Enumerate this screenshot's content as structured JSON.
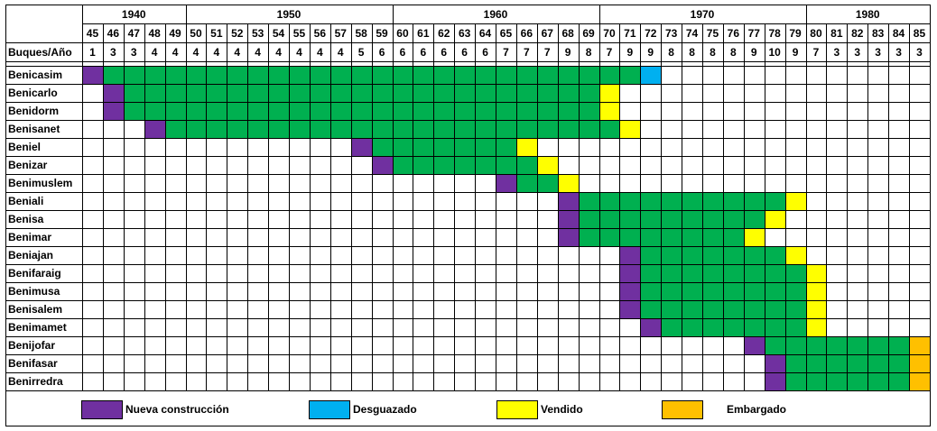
{
  "chart_data": {
    "type": "table",
    "header_label": "Buques/Año",
    "decades": [
      "1940",
      "1950",
      "1960",
      "1970",
      "1980"
    ],
    "decade_spans": [
      {
        "label": "1940",
        "start": 0,
        "count": 5
      },
      {
        "label": "1950",
        "start": 5,
        "count": 10
      },
      {
        "label": "1960",
        "start": 15,
        "count": 10
      },
      {
        "label": "1970",
        "start": 25,
        "count": 10
      },
      {
        "label": "1980",
        "start": 35,
        "count": 6
      }
    ],
    "years": [
      "45",
      "46",
      "47",
      "48",
      "49",
      "50",
      "51",
      "52",
      "53",
      "54",
      "55",
      "56",
      "57",
      "58",
      "59",
      "60",
      "61",
      "62",
      "63",
      "64",
      "65",
      "66",
      "67",
      "68",
      "69",
      "70",
      "71",
      "72",
      "73",
      "74",
      "75",
      "76",
      "77",
      "78",
      "79",
      "80",
      "81",
      "82",
      "83",
      "84",
      "85"
    ],
    "fleet_counts": [
      "1",
      "3",
      "3",
      "4",
      "4",
      "4",
      "4",
      "4",
      "4",
      "4",
      "4",
      "4",
      "4",
      "5",
      "6",
      "6",
      "6",
      "6",
      "6",
      "6",
      "7",
      "7",
      "7",
      "9",
      "8",
      "7",
      "9",
      "9",
      "8",
      "8",
      "8",
      "8",
      "9",
      "10",
      "9",
      "7",
      "3",
      "3",
      "3",
      "3",
      "3"
    ],
    "ships": [
      {
        "name": "Benicasim",
        "nueva": "45",
        "activo": [
          "46",
          "71"
        ],
        "fin": "72",
        "estado": "desguazado"
      },
      {
        "name": "Benicarlo",
        "nueva": "46",
        "activo": [
          "47",
          "69"
        ],
        "fin": "70",
        "estado": "vendido"
      },
      {
        "name": "Benidorm",
        "nueva": "46",
        "activo": [
          "47",
          "69"
        ],
        "fin": "70",
        "estado": "vendido"
      },
      {
        "name": "Benisanet",
        "nueva": "48",
        "activo": [
          "49",
          "70"
        ],
        "fin": "71",
        "estado": "vendido"
      },
      {
        "name": "Beniel",
        "nueva": "58",
        "activo": [
          "59",
          "65"
        ],
        "fin": "66",
        "estado": "vendido"
      },
      {
        "name": "Benizar",
        "nueva": "59",
        "activo": [
          "60",
          "66"
        ],
        "fin": "67",
        "estado": "vendido"
      },
      {
        "name": "Benimuslem",
        "nueva": "65",
        "activo": [
          "66",
          "67"
        ],
        "fin": "68",
        "estado": "vendido"
      },
      {
        "name": "Beniali",
        "nueva": "68",
        "activo": [
          "69",
          "78"
        ],
        "fin": "79",
        "estado": "vendido"
      },
      {
        "name": "Benisa",
        "nueva": "68",
        "activo": [
          "69",
          "77"
        ],
        "fin": "78",
        "estado": "vendido"
      },
      {
        "name": "Benimar",
        "nueva": "68",
        "activo": [
          "69",
          "76"
        ],
        "fin": "77",
        "estado": "vendido"
      },
      {
        "name": "Beniajan",
        "nueva": "71",
        "activo": [
          "72",
          "78"
        ],
        "fin": "79",
        "estado": "vendido"
      },
      {
        "name": "Benifaraig",
        "nueva": "71",
        "activo": [
          "72",
          "79"
        ],
        "fin": "80",
        "estado": "vendido"
      },
      {
        "name": "Benimusa",
        "nueva": "71",
        "activo": [
          "72",
          "79"
        ],
        "fin": "80",
        "estado": "vendido"
      },
      {
        "name": "Benisalem",
        "nueva": "71",
        "activo": [
          "72",
          "79"
        ],
        "fin": "80",
        "estado": "vendido"
      },
      {
        "name": "Benimamet",
        "nueva": "72",
        "activo": [
          "73",
          "79"
        ],
        "fin": "80",
        "estado": "vendido"
      },
      {
        "name": "Benijofar",
        "nueva": "77",
        "activo": [
          "78",
          "84"
        ],
        "fin": "85",
        "estado": "embargado"
      },
      {
        "name": "Benifasar",
        "nueva": "78",
        "activo": [
          "79",
          "84"
        ],
        "fin": "85",
        "estado": "embargado"
      },
      {
        "name": "Benirredra",
        "nueva": "78",
        "activo": [
          "79",
          "84"
        ],
        "fin": "85",
        "estado": "embargado"
      }
    ],
    "colors": {
      "nueva": "#7030a0",
      "activo": "#00b050",
      "desguazado": "#00b0f0",
      "vendido": "#ffff00",
      "embargado": "#ffc000"
    },
    "legend": [
      {
        "key": "nueva",
        "label": "Nueva construcción"
      },
      {
        "key": "desguazado",
        "label": "Desguazado"
      },
      {
        "key": "vendido",
        "label": "Vendido"
      },
      {
        "key": "embargado",
        "label": "Embargado"
      }
    ]
  }
}
